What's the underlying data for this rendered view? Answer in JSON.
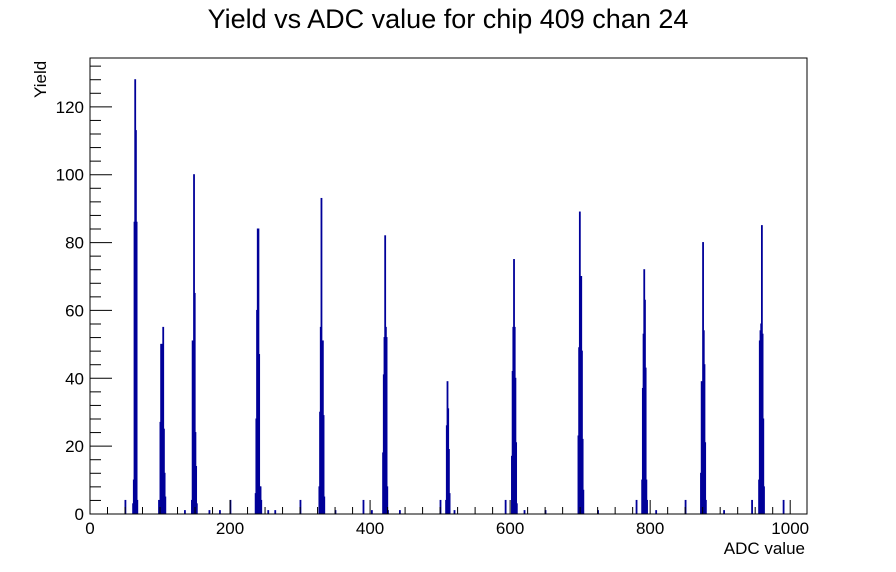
{
  "chart_data": {
    "type": "bar",
    "title": "Yield vs ADC value for chip 409 chan 24",
    "xlabel": "ADC value",
    "ylabel": "Yield",
    "xlim": [
      0,
      1024
    ],
    "ylim": [
      0,
      134.4
    ],
    "xticks": [
      0,
      200,
      400,
      600,
      800,
      1000
    ],
    "xtick_labels": [
      "0",
      "200",
      "400",
      "600",
      "800",
      "1000"
    ],
    "yticks": [
      0,
      20,
      40,
      60,
      80,
      100,
      120
    ],
    "ytick_labels": [
      "0",
      "20",
      "40",
      "60",
      "80",
      "100",
      "120"
    ],
    "grid": false,
    "bin_width": 1,
    "series_color": "#000099",
    "bins": [
      [
        50,
        4
      ],
      [
        61,
        3
      ],
      [
        62,
        10
      ],
      [
        63,
        86
      ],
      [
        64,
        128
      ],
      [
        65,
        113
      ],
      [
        66,
        86
      ],
      [
        67,
        4
      ],
      [
        98,
        4
      ],
      [
        100,
        27
      ],
      [
        101,
        50
      ],
      [
        102,
        28
      ],
      [
        103,
        50
      ],
      [
        104,
        55
      ],
      [
        105,
        25
      ],
      [
        106,
        12
      ],
      [
        107,
        5
      ],
      [
        135,
        1
      ],
      [
        145,
        4
      ],
      [
        146,
        51
      ],
      [
        147,
        35
      ],
      [
        148,
        100
      ],
      [
        149,
        65
      ],
      [
        150,
        24
      ],
      [
        151,
        14
      ],
      [
        152,
        3
      ],
      [
        170,
        1
      ],
      [
        185,
        1
      ],
      [
        200,
        4
      ],
      [
        236,
        6
      ],
      [
        237,
        28
      ],
      [
        238,
        60
      ],
      [
        239,
        84
      ],
      [
        240,
        84
      ],
      [
        241,
        47
      ],
      [
        242,
        8
      ],
      [
        243,
        8
      ],
      [
        244,
        4
      ],
      [
        254,
        1
      ],
      [
        264,
        1
      ],
      [
        300,
        4
      ],
      [
        327,
        8
      ],
      [
        328,
        30
      ],
      [
        329,
        55
      ],
      [
        330,
        93
      ],
      [
        331,
        48
      ],
      [
        332,
        51
      ],
      [
        333,
        29
      ],
      [
        334,
        5
      ],
      [
        350,
        1
      ],
      [
        390,
        4
      ],
      [
        402,
        1
      ],
      [
        418,
        18
      ],
      [
        419,
        41
      ],
      [
        420,
        52
      ],
      [
        421,
        82
      ],
      [
        422,
        55
      ],
      [
        423,
        52
      ],
      [
        424,
        8
      ],
      [
        425,
        1
      ],
      [
        442,
        1
      ],
      [
        500,
        4
      ],
      [
        508,
        4
      ],
      [
        509,
        26
      ],
      [
        510,
        39
      ],
      [
        511,
        31
      ],
      [
        512,
        19
      ],
      [
        513,
        6
      ],
      [
        520,
        1
      ],
      [
        593,
        4
      ],
      [
        602,
        17
      ],
      [
        603,
        42
      ],
      [
        604,
        55
      ],
      [
        605,
        75
      ],
      [
        606,
        55
      ],
      [
        607,
        40
      ],
      [
        608,
        21
      ],
      [
        609,
        3
      ],
      [
        620,
        1
      ],
      [
        650,
        1
      ],
      [
        697,
        23
      ],
      [
        698,
        49
      ],
      [
        699,
        89
      ],
      [
        700,
        16
      ],
      [
        701,
        70
      ],
      [
        702,
        48
      ],
      [
        703,
        22
      ],
      [
        704,
        7
      ],
      [
        725,
        1
      ],
      [
        780,
        4
      ],
      [
        788,
        10
      ],
      [
        789,
        37
      ],
      [
        790,
        53
      ],
      [
        791,
        72
      ],
      [
        792,
        63
      ],
      [
        793,
        43
      ],
      [
        794,
        10
      ],
      [
        795,
        4
      ],
      [
        808,
        1
      ],
      [
        850,
        4
      ],
      [
        872,
        12
      ],
      [
        873,
        39
      ],
      [
        874,
        36
      ],
      [
        875,
        80
      ],
      [
        876,
        54
      ],
      [
        877,
        44
      ],
      [
        878,
        21
      ],
      [
        879,
        4
      ],
      [
        905,
        1
      ],
      [
        945,
        4
      ],
      [
        955,
        10
      ],
      [
        956,
        51
      ],
      [
        957,
        54
      ],
      [
        958,
        56
      ],
      [
        959,
        85
      ],
      [
        960,
        53
      ],
      [
        961,
        28
      ],
      [
        962,
        8
      ],
      [
        990,
        4
      ]
    ]
  }
}
